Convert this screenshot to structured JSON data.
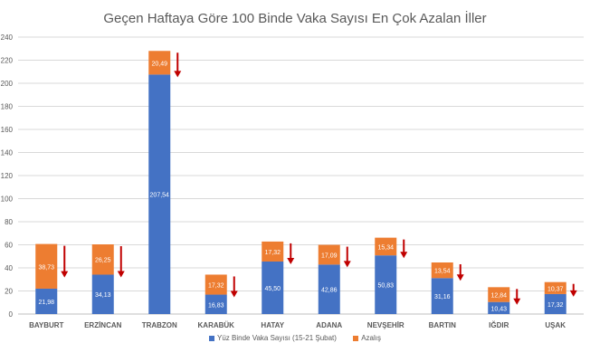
{
  "chart_data": {
    "type": "bar",
    "stacked": true,
    "title": "Geçen Haftaya Göre 100 Binde Vaka Sayısı En Çok Azalan İller",
    "categories": [
      "BAYBURT",
      "ERZİNCAN",
      "TRABZON",
      "KARABÜK",
      "HATAY",
      "ADANA",
      "NEVŞEHİR",
      "BARTIN",
      "IĞDIR",
      "UŞAK"
    ],
    "series": [
      {
        "name": "Yüz Binde Vaka Sayısı (15-21 Şubat)",
        "color": "#4472c4",
        "values": [
          21.98,
          34.13,
          207.54,
          16.83,
          45.5,
          42.86,
          50.83,
          31.16,
          10.43,
          17.32
        ],
        "labels": [
          "21,98",
          "34,13",
          "207,54",
          "16,83",
          "45,50",
          "42,86",
          "50,83",
          "31,16",
          "10,43",
          "17,32"
        ]
      },
      {
        "name": "Azalış",
        "color": "#ed7d31",
        "values": [
          38.73,
          26.25,
          20.49,
          17.32,
          17.32,
          17.09,
          15.34,
          13.54,
          12.84,
          10.37
        ],
        "labels": [
          "38,73",
          "26,25",
          "20,49",
          "17,32",
          "17,32",
          "17,09",
          "15,34",
          "13,54",
          "12,84",
          "10,37"
        ]
      }
    ],
    "ylim": [
      0,
      240
    ],
    "yticks": [
      "0",
      "20",
      "40",
      "60",
      "80",
      "100",
      "120",
      "140",
      "160",
      "180",
      "200",
      "220",
      "240"
    ],
    "grid": true,
    "legend_position": "bottom",
    "arrow_color": "#c00000"
  }
}
